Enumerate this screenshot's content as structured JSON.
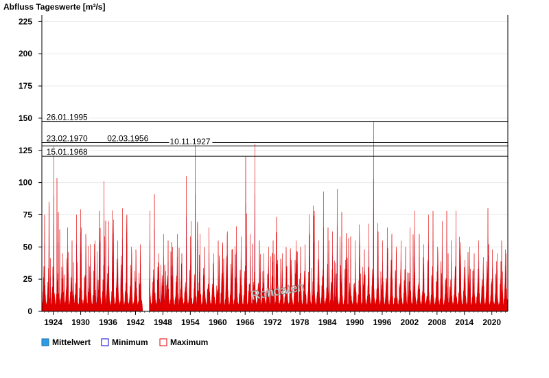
{
  "chart_data": {
    "type": "area",
    "title": "Abfluss Tageswerte [m³/s]",
    "xlabel": "",
    "ylabel": "",
    "xlim": [
      1921.5,
      2023.5
    ],
    "ylim": [
      0,
      230
    ],
    "yticks": [
      0,
      25,
      50,
      75,
      100,
      125,
      150,
      175,
      200,
      225
    ],
    "xticks": [
      "1924",
      "1930",
      "1936",
      "1942",
      "1948",
      "1954",
      "1960",
      "1966",
      "1972",
      "1978",
      "1984",
      "1990",
      "1996",
      "2002",
      "2008",
      "2014",
      "2020"
    ],
    "grid": "horizontal",
    "legend_position": "bottom-left",
    "gap": [
      1943.5,
      1945.0
    ],
    "colors": {
      "mean": "#2e9be5",
      "minimum": "#0000cc",
      "maximum": "#e00000"
    },
    "series": [
      {
        "name": "Mittelwert",
        "color": "#2e9be5",
        "fill": "#2e9be5"
      },
      {
        "name": "Minimum",
        "color": "#0000cc",
        "fill": "#ffffff"
      },
      {
        "name": "Maximum",
        "color": "#e00000",
        "fill": "#ffffff"
      }
    ],
    "annual_peaks": [
      [
        1922,
        75
      ],
      [
        1923,
        85
      ],
      [
        1924,
        128
      ],
      [
        1925,
        77
      ],
      [
        1926,
        45
      ],
      [
        1927,
        65
      ],
      [
        1928,
        55
      ],
      [
        1929,
        75
      ],
      [
        1930,
        65
      ],
      [
        1931,
        60
      ],
      [
        1932,
        52
      ],
      [
        1933,
        55
      ],
      [
        1934,
        78
      ],
      [
        1935,
        101
      ],
      [
        1936,
        70
      ],
      [
        1937,
        62
      ],
      [
        1938,
        55
      ],
      [
        1939,
        80
      ],
      [
        1940,
        75
      ],
      [
        1941,
        50
      ],
      [
        1942,
        42
      ],
      [
        1943,
        52
      ],
      [
        1945,
        78
      ],
      [
        1946,
        91
      ],
      [
        1947,
        45
      ],
      [
        1948,
        60
      ],
      [
        1949,
        55
      ],
      [
        1950,
        50
      ],
      [
        1951,
        60
      ],
      [
        1952,
        45
      ],
      [
        1953,
        105
      ],
      [
        1954,
        70
      ],
      [
        1955,
        130
      ],
      [
        1956,
        60
      ],
      [
        1957,
        50
      ],
      [
        1958,
        65
      ],
      [
        1959,
        45
      ],
      [
        1960,
        55
      ],
      [
        1961,
        50
      ],
      [
        1962,
        62
      ],
      [
        1963,
        48
      ],
      [
        1964,
        66
      ],
      [
        1965,
        58
      ],
      [
        1966,
        120
      ],
      [
        1967,
        60
      ],
      [
        1968,
        130
      ],
      [
        1969,
        55
      ],
      [
        1970,
        45
      ],
      [
        1971,
        50
      ],
      [
        1972,
        55
      ],
      [
        1973,
        40
      ],
      [
        1974,
        45
      ],
      [
        1975,
        35
      ],
      [
        1976,
        40
      ],
      [
        1977,
        55
      ],
      [
        1978,
        50
      ],
      [
        1979,
        52
      ],
      [
        1980,
        60
      ],
      [
        1981,
        78
      ],
      [
        1982,
        55
      ],
      [
        1983,
        93
      ],
      [
        1984,
        65
      ],
      [
        1985,
        62
      ],
      [
        1986,
        95
      ],
      [
        1987,
        77
      ],
      [
        1988,
        60
      ],
      [
        1989,
        58
      ],
      [
        1990,
        55
      ],
      [
        1991,
        50
      ],
      [
        1992,
        48
      ],
      [
        1993,
        68
      ],
      [
        1994,
        147
      ],
      [
        1995,
        62
      ],
      [
        1996,
        55
      ],
      [
        1997,
        65
      ],
      [
        1998,
        60
      ],
      [
        1999,
        45
      ],
      [
        2000,
        55
      ],
      [
        2001,
        50
      ],
      [
        2002,
        65
      ],
      [
        2003,
        78
      ],
      [
        2004,
        60
      ],
      [
        2005,
        52
      ],
      [
        2006,
        75
      ],
      [
        2007,
        78
      ],
      [
        2008,
        50
      ],
      [
        2009,
        70
      ],
      [
        2010,
        78
      ],
      [
        2011,
        55
      ],
      [
        2012,
        78
      ],
      [
        2013,
        45
      ],
      [
        2014,
        40
      ],
      [
        2015,
        50
      ],
      [
        2016,
        45
      ],
      [
        2017,
        55
      ],
      [
        2018,
        42
      ],
      [
        2019,
        80
      ],
      [
        2020,
        48
      ],
      [
        2021,
        45
      ],
      [
        2022,
        55
      ],
      [
        2023,
        45
      ]
    ],
    "reference_lines": [
      {
        "label": "26.01.1995",
        "value": 147.5,
        "label_x": 1922.5
      },
      {
        "label": "23.02.1970",
        "value": 131.0,
        "label_x": 1922.5
      },
      {
        "label": "02.03.1956",
        "value": 131.0,
        "label_x": 1935.8
      },
      {
        "label": "10.11.1927",
        "value": 128.5,
        "label_x": 1949.5
      },
      {
        "label": "15.01.1968",
        "value": 120.5,
        "label_x": 1922.5
      }
    ],
    "watermark": "Rohdaten"
  }
}
